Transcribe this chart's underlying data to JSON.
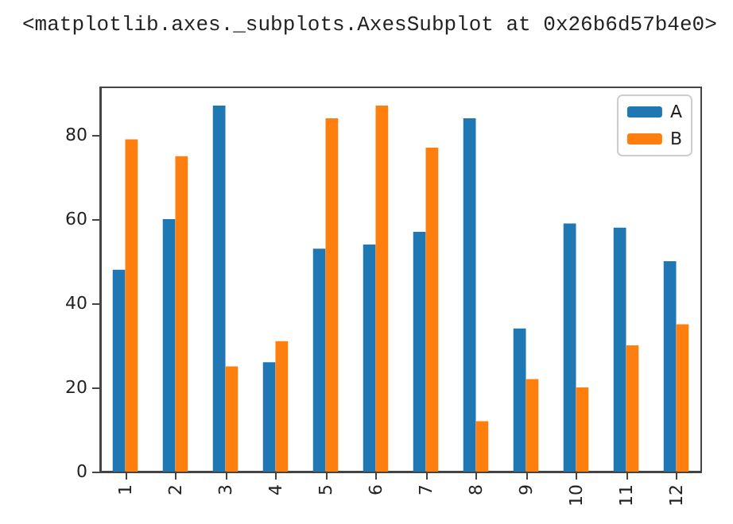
{
  "chart_data": {
    "type": "bar",
    "annotations": [
      "<matplotlib.axes._subplots.AxesSubplot at 0x26b6d57b4e0>"
    ],
    "categories": [
      "1",
      "2",
      "3",
      "4",
      "5",
      "6",
      "7",
      "8",
      "9",
      "10",
      "11",
      "12"
    ],
    "series": [
      {
        "name": "A",
        "color": "#1f77b4",
        "values": [
          48,
          60,
          87,
          26,
          53,
          54,
          57,
          84,
          34,
          59,
          58,
          50
        ]
      },
      {
        "name": "B",
        "color": "#ff7f0e",
        "values": [
          79,
          75,
          25,
          31,
          84,
          87,
          77,
          12,
          22,
          20,
          30,
          35
        ]
      }
    ],
    "ylim": [
      0,
      91.35
    ],
    "yticks": [
      0,
      20,
      40,
      60,
      80
    ],
    "grid": false,
    "legend": "top right"
  }
}
